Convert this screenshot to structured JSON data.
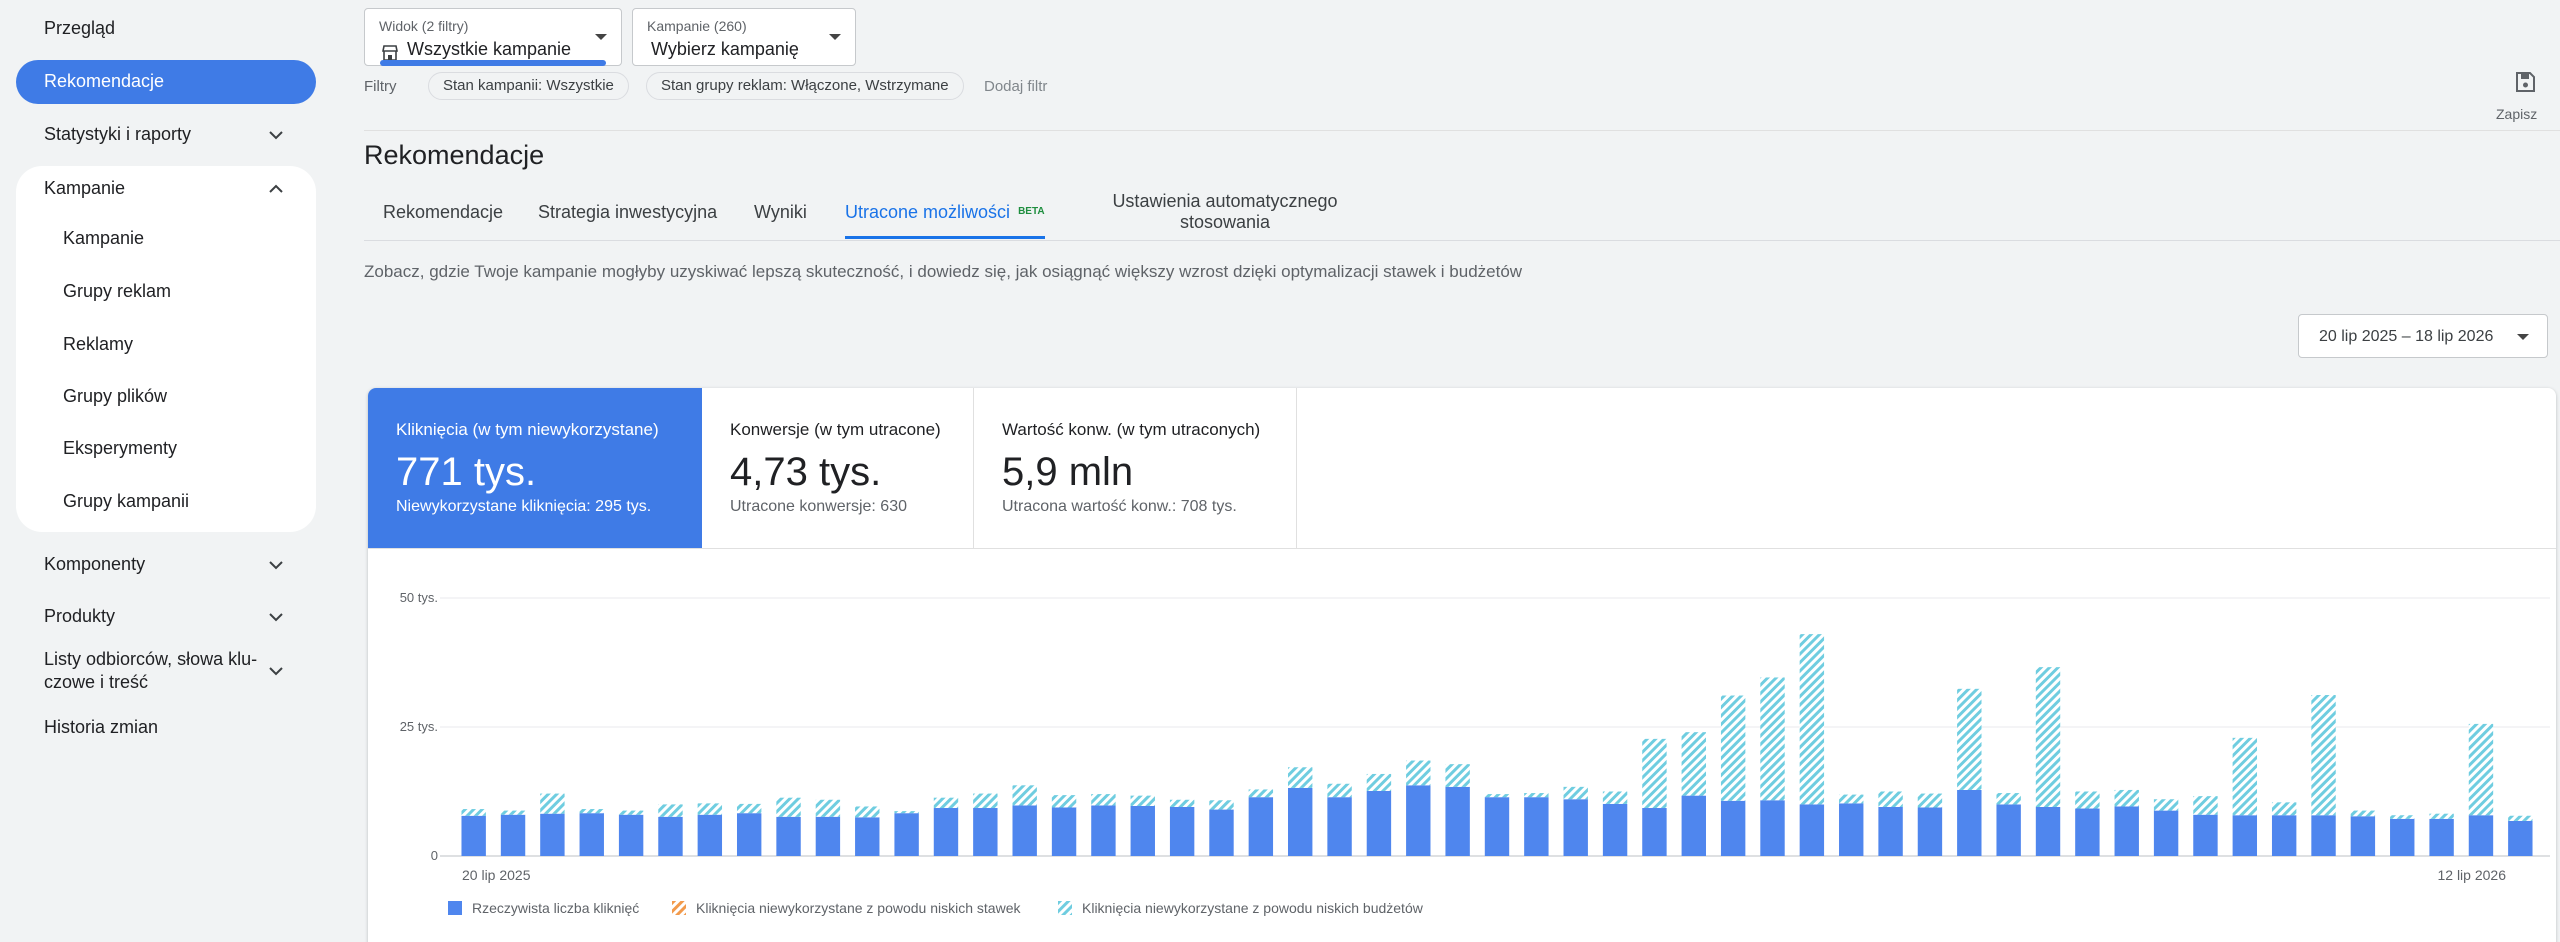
{
  "sidebar": {
    "overview": "Przegląd",
    "active": "Rekomendacje",
    "stats": "Statystyki i raporty",
    "campaigns_group": "Kampanie",
    "sub_items": [
      "Kampanie",
      "Grupy reklam",
      "Reklamy",
      "Grupy plików",
      "Eksperymenty",
      "Grupy kampanii"
    ],
    "components": "Komponenty",
    "products": "Produkty",
    "audiences_line1": "Listy odbiorców, słowa klu-",
    "audiences_line2": "czowe i treść",
    "history": "Historia zmian"
  },
  "view_dropdown": {
    "label": "Widok (2 filtry)",
    "value": "Wszystkie kampanie"
  },
  "campaign_dropdown": {
    "label": "Kampanie (260)",
    "value": "Wybierz kampanię"
  },
  "filters": {
    "label": "Filtry",
    "chips": [
      "Stan kampanii: Wszystkie",
      "Stan grupy reklam: Włączone, Wstrzymane"
    ],
    "add": "Dodaj filtr"
  },
  "save": "Zapisz",
  "page_title": "Rekomendacje",
  "tabs": {
    "t1": "Rekomendacje",
    "t2": "Strategia inwestycyjna",
    "t3": "Wyniki",
    "t4": "Utracone możliwości",
    "t4_badge": "BETA",
    "t5_line1": "Ustawienia automatycznego",
    "t5_line2": "stosowania"
  },
  "description": "Zobacz, gdzie Twoje kampanie mogłyby uzyskiwać lepszą skuteczność, i dowiedz się, jak osiągnąć większy wzrost dzięki optymalizacji stawek i budżetów",
  "date_range": "20 lip 2025 – 18 lip 2026",
  "metrics": [
    {
      "label": "Kliknięcia (w tym niewykorzystane)",
      "value": "771 tys.",
      "sub": "Niewykorzystane kliknięcia: 295 tys."
    },
    {
      "label": "Konwersje (w tym utracone)",
      "value": "4,73 tys.",
      "sub": "Utracone konwersje: 630"
    },
    {
      "label": "Wartość konw. (w tym utraconych)",
      "value": "5,9 mln",
      "sub": "Utracona wartość konw.: 708 tys."
    }
  ],
  "colors": {
    "accent": "#3f7be6",
    "actual": "#4f86ee",
    "budget": "#6fcde0",
    "bids": "#f29a4b"
  },
  "chart_data": {
    "type": "bar",
    "stacked": true,
    "ylim": [
      0,
      50000
    ],
    "y_ticks": [
      "0",
      "25 tys.",
      "50 tys."
    ],
    "x_tick_labels": [
      "20 lip 2025",
      "12 lip 2026"
    ],
    "grid": true,
    "legend_position": "bottom-left",
    "series": [
      {
        "name": "Rzeczywista liczba kliknięć",
        "values": [
          7800,
          8000,
          8200,
          8300,
          8000,
          7600,
          8000,
          8300,
          7600,
          7600,
          7500,
          8300,
          9300,
          9300,
          9800,
          9400,
          9800,
          9700,
          9500,
          9000,
          11400,
          13200,
          11400,
          12600,
          13700,
          13400,
          11400,
          11400,
          11000,
          10100,
          9300,
          11700,
          10700,
          10800,
          10000,
          10200,
          9500,
          9400,
          12800,
          10000,
          9500,
          9200,
          9600,
          8800,
          8000,
          7900,
          7900,
          7900,
          7700,
          7200,
          7200,
          7900,
          6800
        ]
      },
      {
        "name": "Kliknięcia niewykorzystane z powodu niskich stawek",
        "values": [
          0,
          0,
          0,
          0,
          0,
          0,
          0,
          0,
          0,
          0,
          0,
          0,
          0,
          0,
          0,
          0,
          0,
          0,
          0,
          0,
          0,
          0,
          0,
          0,
          0,
          0,
          0,
          0,
          0,
          0,
          0,
          0,
          0,
          0,
          0,
          0,
          0,
          0,
          0,
          0,
          0,
          0,
          0,
          0,
          0,
          0,
          0,
          0,
          0,
          0,
          0,
          0,
          0
        ]
      },
      {
        "name": "Kliknięcia niewykorzystane z powodu niskich budżetów",
        "values": [
          1300,
          800,
          3900,
          800,
          800,
          2400,
          2200,
          1800,
          3700,
          3300,
          2100,
          400,
          2000,
          2800,
          3900,
          2400,
          2200,
          2000,
          1400,
          1800,
          1500,
          4000,
          2600,
          3300,
          4800,
          4400,
          600,
          800,
          2400,
          2400,
          13400,
          12300,
          20400,
          23800,
          33000,
          1700,
          3000,
          2700,
          19600,
          2200,
          27100,
          3300,
          3200,
          2200,
          3600,
          15000,
          2500,
          23300,
          1100,
          700,
          1000,
          17700,
          1000
        ]
      }
    ]
  }
}
